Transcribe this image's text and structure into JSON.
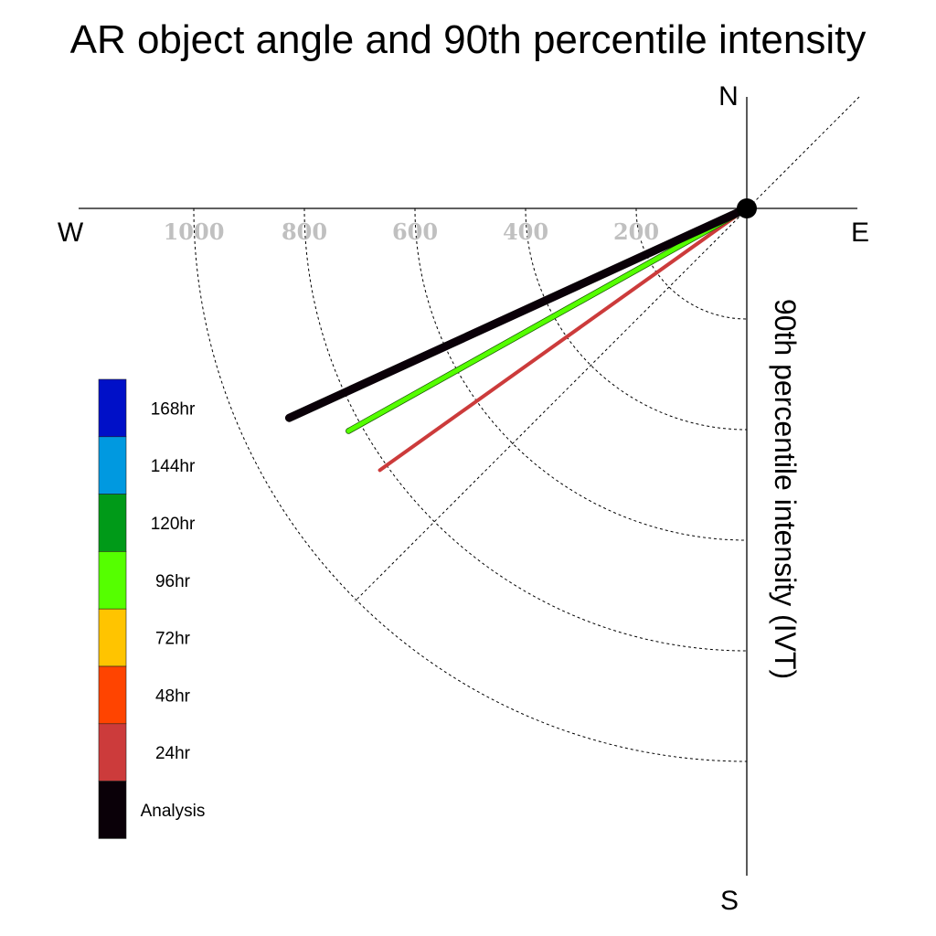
{
  "chart_data": {
    "type": "polar",
    "title": "AR object angle and 90th percentile intensity",
    "ylabel": "90th percentile intensity (IVT)",
    "compass": {
      "north": "N",
      "south": "S",
      "east": "E",
      "west": "W"
    },
    "radial_ticks": [
      "200",
      "400",
      "600",
      "800",
      "1000"
    ],
    "radial_tick_values": [
      200,
      400,
      600,
      800,
      1000
    ],
    "rmax": 1200,
    "grid": true,
    "legend_placement": "left",
    "legend": [
      {
        "label": "168hr",
        "color": "#0010c8"
      },
      {
        "label": "144hr",
        "color": "#0099e0"
      },
      {
        "label": "120hr",
        "color": "#009a18"
      },
      {
        "label": "96hr",
        "color": "#55ff00"
      },
      {
        "label": "72hr",
        "color": "#ffc400"
      },
      {
        "label": "48hr",
        "color": "#ff4400"
      },
      {
        "label": "24hr",
        "color": "#cc3b3b"
      },
      {
        "label": "Analysis",
        "color": "#0a0008"
      }
    ],
    "series": [
      {
        "name": "Analysis",
        "angle_deg_from_west_toward_south": 24.6,
        "intensity": 910,
        "color": "#0a0008",
        "width": 9
      },
      {
        "name": "96hr",
        "angle_deg_from_west_toward_south": 29.2,
        "intensity": 825,
        "color": "#55ff00",
        "width": 5
      },
      {
        "name": "24hr",
        "angle_deg_from_west_toward_south": 35.5,
        "intensity": 815,
        "color": "#cc3b3b",
        "width": 4
      }
    ]
  }
}
